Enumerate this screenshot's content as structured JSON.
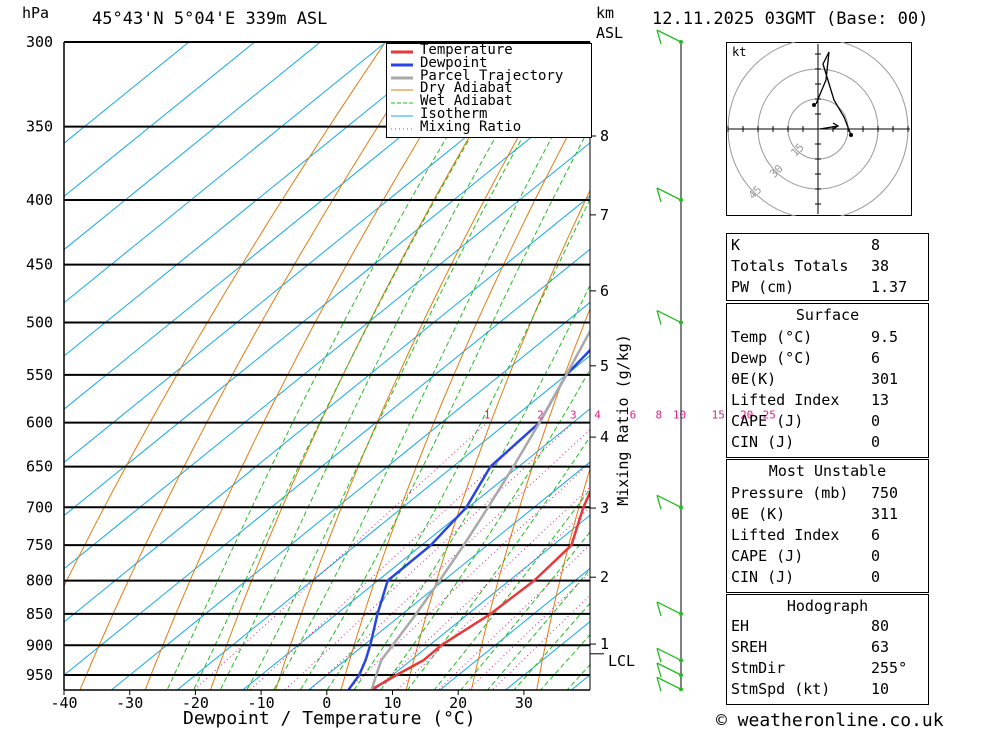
{
  "header": {
    "hpa_label": "hPa",
    "location": "45°43'N  5°04'E  339m  ASL",
    "km_label": "km",
    "asl_label": "ASL",
    "date": "12.11.2025  03GMT  (Base: 00)"
  },
  "footer": {
    "copyright": "© weatheronline.co.uk"
  },
  "chart_data": {
    "type": "line",
    "subtype": "skew-T log-P diagram",
    "xlabel": "Dewpoint / Temperature (°C)",
    "ylabel": "hPa",
    "y_scale": "log",
    "ylim": [
      975,
      300
    ],
    "xlim": [
      -40,
      40
    ],
    "x_ticks": [
      -40,
      -30,
      -20,
      -10,
      0,
      10,
      20,
      30
    ],
    "pressure_levels": [
      300,
      350,
      400,
      450,
      500,
      550,
      600,
      650,
      700,
      750,
      800,
      850,
      900,
      950
    ],
    "km_ticks": [
      {
        "km": 1,
        "p": 898
      },
      {
        "km": 2,
        "p": 795
      },
      {
        "km": 3,
        "p": 701
      },
      {
        "km": 4,
        "p": 616
      },
      {
        "km": 5,
        "p": 541
      },
      {
        "km": 6,
        "p": 472
      },
      {
        "km": 7,
        "p": 411
      },
      {
        "km": 8,
        "p": 356
      }
    ],
    "lcl": {
      "label": "LCL",
      "p": 914
    },
    "mixing_ratio_label": "Mixing Ratio (g/kg)",
    "mixing_ratios": [
      1,
      2,
      3,
      4,
      6,
      8,
      10,
      15,
      20,
      25
    ],
    "legend": [
      "Temperature",
      "Dewpoint",
      "Parcel Trajectory",
      "Dry Adiabat",
      "Wet Adiabat",
      "Isotherm",
      "Mixing Ratio"
    ],
    "colors": {
      "temperature": "#e8383a",
      "dewpoint": "#2845e0",
      "parcel": "#a9a9a9",
      "dry_adiabat": "#e07b10",
      "wet_adiabat": "#22bb22",
      "isotherm": "#14a8e8",
      "mixing_ratio": "#e0208a",
      "wind": "#22bb22"
    },
    "series": [
      {
        "name": "Temperature",
        "points": [
          [
            975,
            9.5
          ],
          [
            950,
            10.6
          ],
          [
            925,
            11.9
          ],
          [
            900,
            11.8
          ],
          [
            850,
            13.4
          ],
          [
            800,
            13.8
          ],
          [
            750,
            12.8
          ],
          [
            700,
            7.5
          ],
          [
            650,
            2.6
          ],
          [
            600,
            -1.3
          ],
          [
            550,
            -4.9
          ],
          [
            500,
            -10.6
          ],
          [
            450,
            -16.2
          ],
          [
            400,
            -22
          ],
          [
            350,
            -31
          ],
          [
            300,
            -41
          ]
        ]
      },
      {
        "name": "Dewpoint",
        "points": [
          [
            975,
            6
          ],
          [
            950,
            4.9
          ],
          [
            925,
            3.1
          ],
          [
            900,
            1
          ],
          [
            850,
            -3.8
          ],
          [
            800,
            -8.5
          ],
          [
            750,
            -8.6
          ],
          [
            700,
            -10.3
          ],
          [
            650,
            -14.3
          ],
          [
            600,
            -15.1
          ],
          [
            550,
            -20
          ],
          [
            500,
            -22.2
          ],
          [
            450,
            -27.2
          ],
          [
            400,
            -38.7
          ],
          [
            350,
            -46.3
          ],
          [
            300,
            -60
          ]
        ]
      },
      {
        "name": "Parcel Trajectory",
        "points": [
          [
            975,
            9.5
          ],
          [
            950,
            7.5
          ],
          [
            925,
            5.5
          ],
          [
            900,
            4.4
          ],
          [
            850,
            2.1
          ],
          [
            800,
            -0.6
          ],
          [
            750,
            -3.6
          ],
          [
            700,
            -7
          ],
          [
            650,
            -10.8
          ],
          [
            600,
            -15.1
          ],
          [
            550,
            -20
          ],
          [
            500,
            -25.5
          ],
          [
            450,
            -31.5
          ],
          [
            400,
            -38.5
          ],
          [
            350,
            -46.5
          ],
          [
            300,
            -56
          ]
        ]
      }
    ],
    "wind_barbs": [
      {
        "p": 300
      },
      {
        "p": 400
      },
      {
        "p": 500
      },
      {
        "p": 700
      },
      {
        "p": 850
      },
      {
        "p": 925
      },
      {
        "p": 950
      },
      {
        "p": 975
      }
    ],
    "hodograph": {
      "unit_label": "kt",
      "ring_labels": [
        "15",
        "30",
        "45"
      ]
    }
  },
  "indices": [
    {
      "label": "K",
      "value": "8"
    },
    {
      "label": "Totals Totals",
      "value": "38"
    },
    {
      "label": "PW (cm)",
      "value": "1.37"
    }
  ],
  "surface": {
    "title": "Surface",
    "rows": [
      {
        "label": "Temp (°C)",
        "value": "9.5"
      },
      {
        "label": "Dewp (°C)",
        "value": "6"
      },
      {
        "label": "θE(K)",
        "value": "301"
      },
      {
        "label": "Lifted Index",
        "value": "13"
      },
      {
        "label": "CAPE (J)",
        "value": "0"
      },
      {
        "label": "CIN (J)",
        "value": "0"
      }
    ]
  },
  "most_unstable": {
    "title": "Most Unstable",
    "rows": [
      {
        "label": "Pressure (mb)",
        "value": "750"
      },
      {
        "label": "θE (K)",
        "value": "311"
      },
      {
        "label": "Lifted Index",
        "value": "6"
      },
      {
        "label": "CAPE (J)",
        "value": "0"
      },
      {
        "label": "CIN (J)",
        "value": "0"
      }
    ]
  },
  "hodograph_table": {
    "title": "Hodograph",
    "rows": [
      {
        "label": "EH",
        "value": "80"
      },
      {
        "label": "SREH",
        "value": "63"
      },
      {
        "label": "StmDir",
        "value": "255°"
      },
      {
        "label": "StmSpd (kt)",
        "value": "10"
      }
    ]
  }
}
